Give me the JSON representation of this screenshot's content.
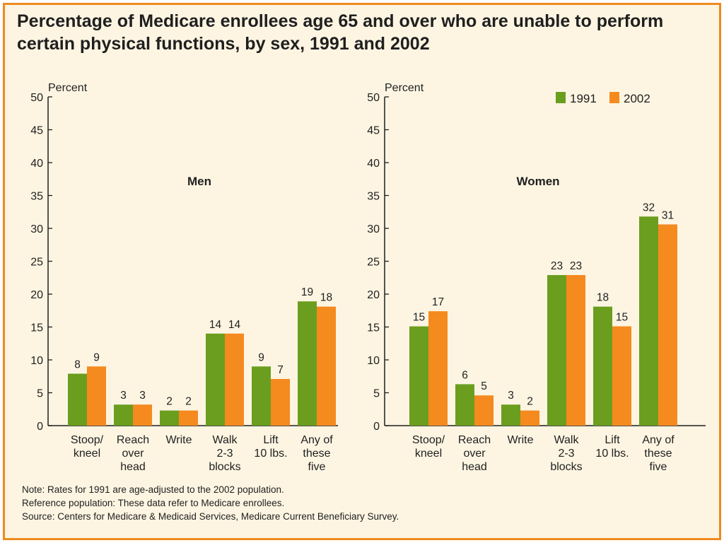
{
  "title": {
    "line1": "Percentage of Medicare enrollees age 65 and over who are unable to perform",
    "line2": "certain physical functions, by sex, 1991 and 2002"
  },
  "colors": {
    "series_1991": "#6b9e1f",
    "series_2002": "#f58a1f",
    "frame": "#ef8a1f",
    "background": "#fdf5e2"
  },
  "notes": {
    "note": "Note: Rates for 1991 are age-adjusted to the 2002 population.",
    "reference": "Reference population: These data refer to Medicare enrollees.",
    "source": "Source: Centers for Medicare & Medicaid Services, Medicare Current Beneficiary Survey."
  },
  "chart_data": [
    {
      "type": "bar",
      "title": "Men",
      "ylabel": "Percent",
      "ylim": [
        0,
        50
      ],
      "yticks": [
        0,
        5,
        10,
        15,
        20,
        25,
        30,
        35,
        40,
        45,
        50
      ],
      "categories": [
        [
          "Stoop/",
          "kneel"
        ],
        [
          "Reach",
          "over",
          "head"
        ],
        [
          "Write"
        ],
        [
          "Walk",
          "2-3",
          "blocks"
        ],
        [
          "Lift",
          "10 lbs."
        ],
        [
          "Any of",
          "these",
          "five"
        ]
      ],
      "series": [
        {
          "name": "1991",
          "values": [
            8,
            3,
            2,
            14,
            9,
            19
          ],
          "plot_values": [
            7.9,
            3.2,
            2.3,
            14.0,
            9.0,
            18.9
          ]
        },
        {
          "name": "2002",
          "values": [
            9,
            3,
            2,
            14,
            7,
            18
          ],
          "plot_values": [
            9.0,
            3.2,
            2.3,
            14.0,
            7.1,
            18.1
          ]
        }
      ],
      "legend": null
    },
    {
      "type": "bar",
      "title": "Women",
      "ylabel": "Percent",
      "ylim": [
        0,
        50
      ],
      "yticks": [
        0,
        5,
        10,
        15,
        20,
        25,
        30,
        35,
        40,
        45,
        50
      ],
      "categories": [
        [
          "Stoop/",
          "kneel"
        ],
        [
          "Reach",
          "over",
          "head"
        ],
        [
          "Write"
        ],
        [
          "Walk",
          "2-3",
          "blocks"
        ],
        [
          "Lift",
          "10 lbs."
        ],
        [
          "Any of",
          "these",
          "five"
        ]
      ],
      "series": [
        {
          "name": "1991",
          "values": [
            15,
            6,
            3,
            23,
            18,
            32
          ],
          "plot_values": [
            15.1,
            6.3,
            3.2,
            22.9,
            18.1,
            31.8
          ]
        },
        {
          "name": "2002",
          "values": [
            17,
            5,
            2,
            23,
            15,
            31
          ],
          "plot_values": [
            17.4,
            4.6,
            2.3,
            22.9,
            15.1,
            30.6
          ]
        }
      ],
      "legend": "top-right"
    }
  ]
}
